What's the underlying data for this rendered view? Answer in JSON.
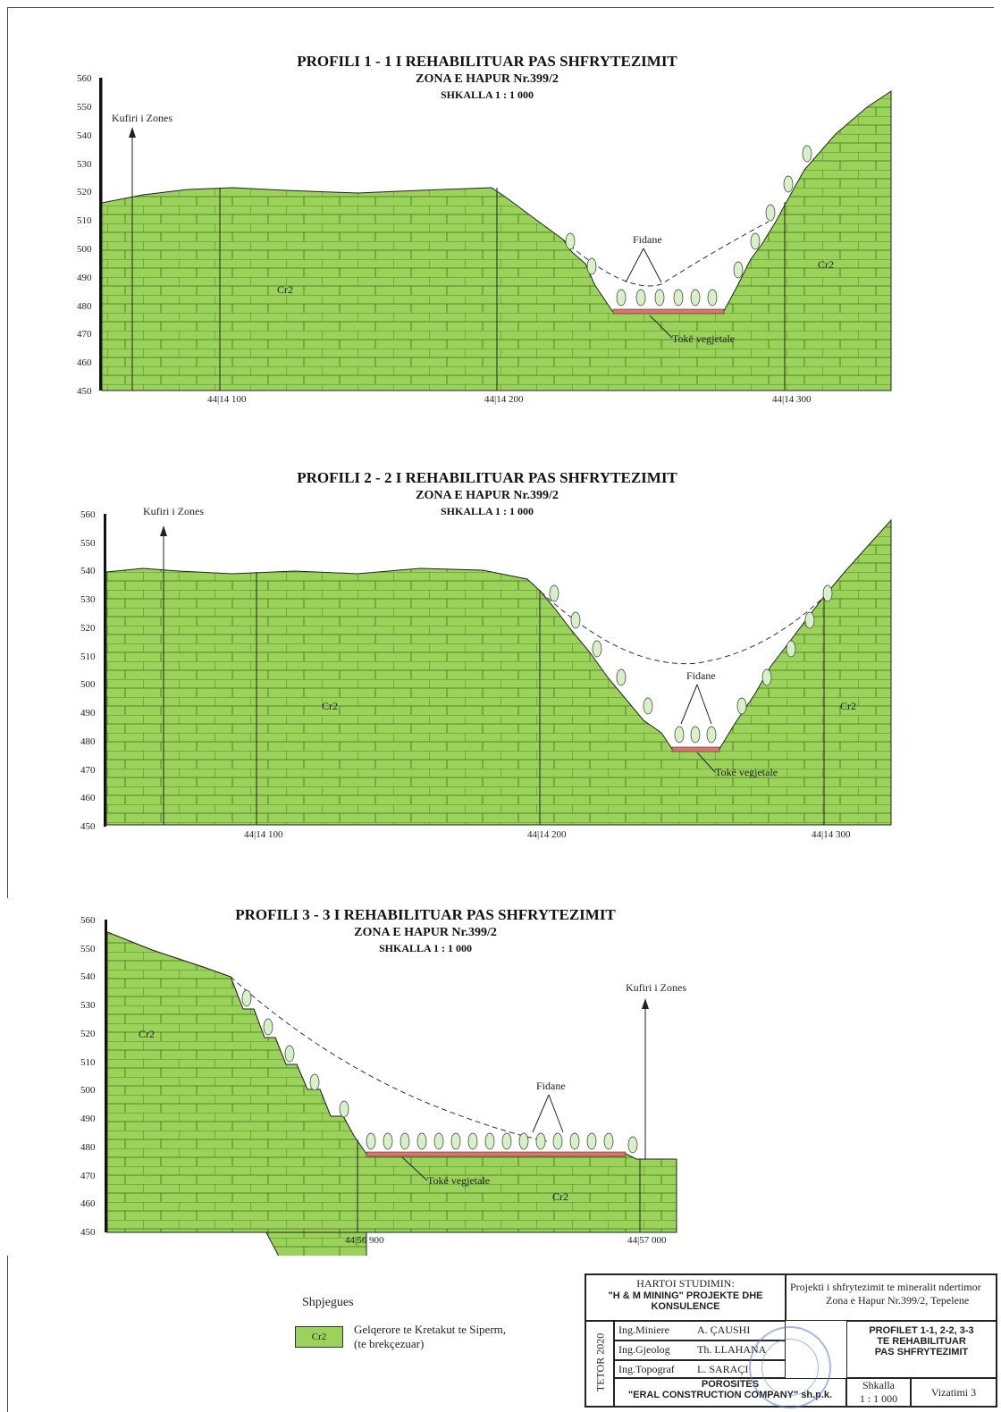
{
  "profiles": [
    {
      "title": "PROFILI  1 - 1  I REHABILITUAR PAS SHFRYTEZIMIT",
      "zone": "ZONA E HAPUR Nr.399/2",
      "scale": "SHKALLA 1 : 1 000",
      "y_ticks": [
        "560",
        "550",
        "540",
        "530",
        "520",
        "510",
        "500",
        "490",
        "480",
        "470",
        "460",
        "450"
      ],
      "x_ticks": [
        "44|14 100",
        "44|14 200",
        "44|14 300"
      ],
      "boundary_label": "Kufiri i Zones",
      "rock_labels": [
        "Cr2",
        "Cr2"
      ],
      "seedlings_label": "Fidane",
      "topsoil_label": "Tokë vegjetale"
    },
    {
      "title": "PROFILI  2 - 2  I REHABILITUAR PAS SHFRYTEZIMIT",
      "zone": "ZONA E HAPUR Nr.399/2",
      "scale": "SHKALLA 1 : 1 000",
      "y_ticks": [
        "560",
        "550",
        "540",
        "530",
        "520",
        "510",
        "500",
        "490",
        "480",
        "470",
        "460",
        "450"
      ],
      "x_ticks": [
        "44|14 100",
        "44|14 200",
        "44|14 300"
      ],
      "boundary_label": "Kufiri i Zones",
      "rock_labels": [
        "Cr2",
        "Cr2"
      ],
      "seedlings_label": "Fidane",
      "topsoil_label": "Tokë vegjetale"
    },
    {
      "title": "PROFILI  3 - 3  I REHABILITUAR PAS SHFRYTEZIMIT",
      "zone": "ZONA E HAPUR Nr.399/2",
      "scale": "SHKALLA 1 : 1 000",
      "y_ticks": [
        "560",
        "550",
        "540",
        "530",
        "520",
        "510",
        "500",
        "490",
        "480",
        "470",
        "460",
        "450"
      ],
      "x_ticks": [
        "44|56 900",
        "44|57 000"
      ],
      "boundary_label": "Kufiri i Zones",
      "rock_labels": [
        "Cr2",
        "Cr2"
      ],
      "seedlings_label": "Fidane",
      "topsoil_label": "Tokë vegjetale"
    }
  ],
  "legend": {
    "title": "Shpjegues",
    "swatch": "Cr2",
    "text_line1": "Gelqerore te Kretakut te Siperm,",
    "text_line2": "(te brekçezuar)"
  },
  "title_block": {
    "prepared_label": "HARTOI STUDIMIN:",
    "company_line1": "\"H & M MINING\" PROJEKTE DHE",
    "company_line2": "KONSULENCE",
    "project_line1": "Projekti i shfrytezimit te mineralit ndertimor",
    "project_line2": "Zona e Hapur Nr.399/2, Tepelene",
    "date": "TETOR 2020",
    "engineers": [
      {
        "role": "Ing.Miniere",
        "name": "A. ÇAUSHI"
      },
      {
        "role": "Ing.Gjeolog",
        "name": "Th. LLAHANA"
      },
      {
        "role": "Ing.Topograf",
        "name": "L. SARAÇI"
      }
    ],
    "drawing_title_1": "PROFILET 1-1, 2-2, 3-3",
    "drawing_title_2": "TE REHABILITUAR",
    "drawing_title_3": "PAS SHFRYTEZIMIT",
    "client_label": "POROSITES",
    "client_name": "\"ERAL CONSTRUCTION COMPANY\" sh.p.k.",
    "scale_label": "Shkalla",
    "scale_value": "1 : 1 000",
    "drawing_no": "Vizatimi  3"
  },
  "colors": {
    "rock": "#9bd35a",
    "topsoil": "#e0736a",
    "tree": "#d8f0c8"
  }
}
